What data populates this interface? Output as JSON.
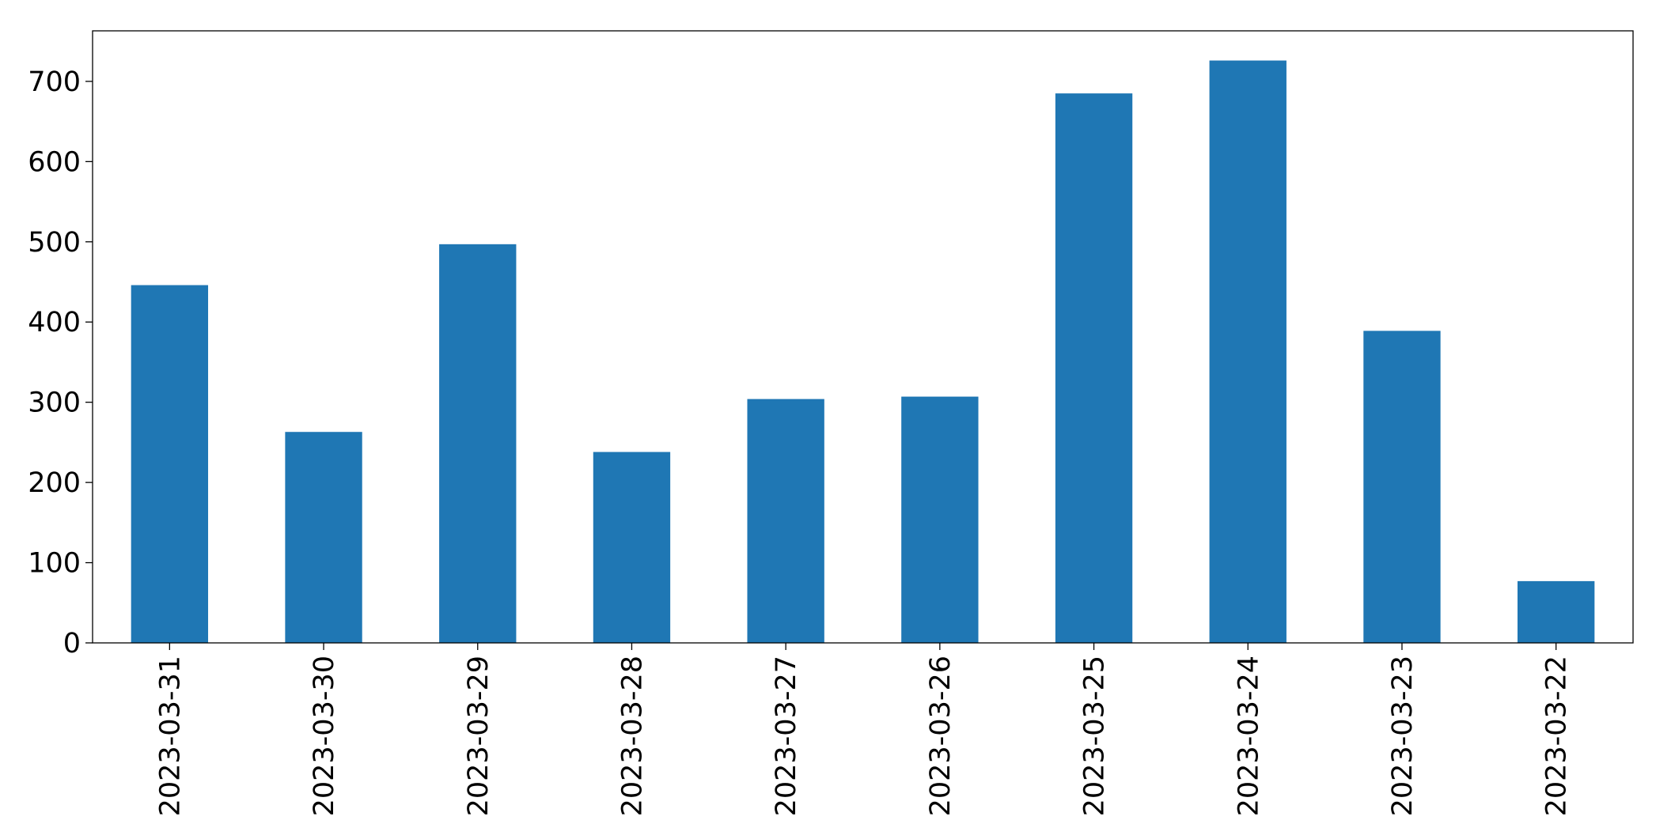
{
  "chart_data": {
    "type": "bar",
    "categories": [
      "2023-03-31",
      "2023-03-30",
      "2023-03-29",
      "2023-03-28",
      "2023-03-27",
      "2023-03-26",
      "2023-03-25",
      "2023-03-24",
      "2023-03-23",
      "2023-03-22"
    ],
    "values": [
      446,
      263,
      497,
      238,
      304,
      307,
      685,
      726,
      389,
      77
    ],
    "color": "#1f77b4",
    "ylim": [
      0,
      763
    ],
    "yticks": [
      0,
      100,
      200,
      300,
      400,
      500,
      600,
      700
    ],
    "grid": false
  }
}
